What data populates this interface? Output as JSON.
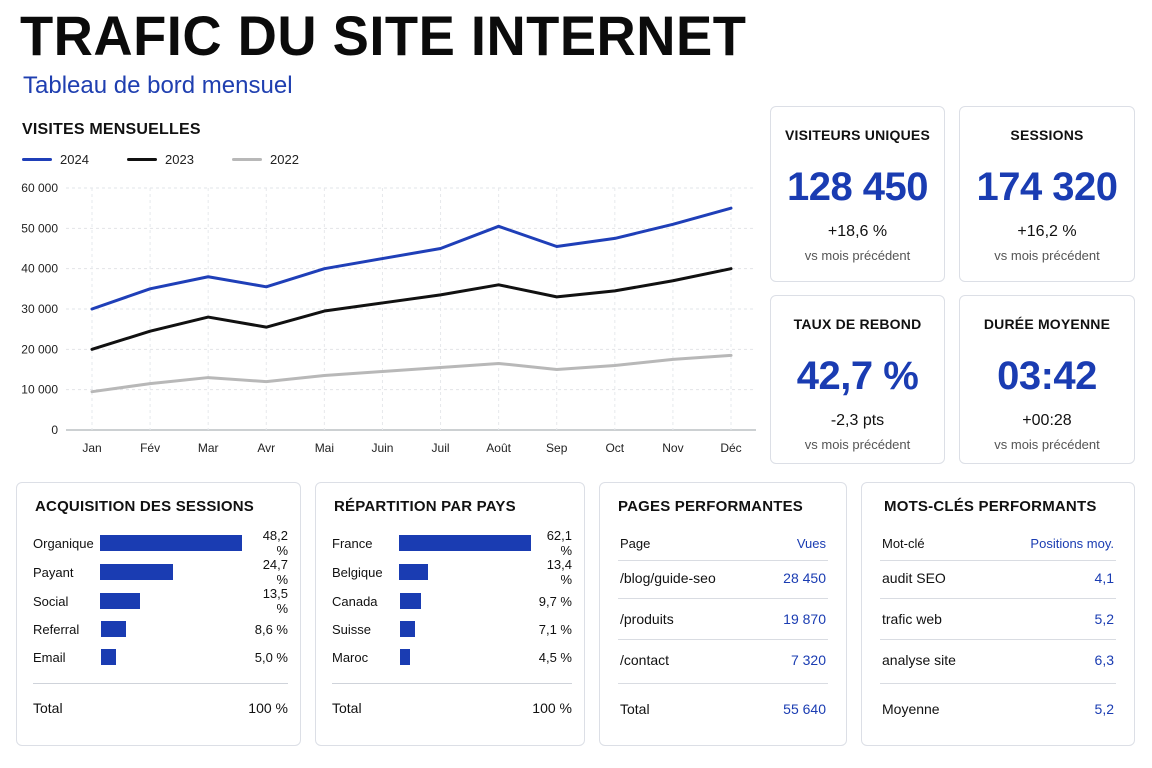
{
  "header": {
    "title": "TRAFIC DU SITE INTERNET",
    "subtitle": "Tableau de bord mensuel"
  },
  "colors": {
    "accent": "#1a3cb2",
    "series_2024": "#1f3fb8",
    "series_2023": "#111111",
    "series_2022": "#b8b8b8"
  },
  "chart_data": {
    "type": "line",
    "title": "VISITES MENSUELLES",
    "categories": [
      "Jan",
      "Fév",
      "Mar",
      "Avr",
      "Mai",
      "Juin",
      "Juil",
      "Août",
      "Sep",
      "Oct",
      "Nov",
      "Déc"
    ],
    "series": [
      {
        "name": "2024",
        "values": [
          30000,
          35000,
          38000,
          35500,
          40000,
          42500,
          45000,
          50500,
          45500,
          47500,
          51000,
          55000
        ]
      },
      {
        "name": "2023",
        "values": [
          20000,
          24500,
          28000,
          25500,
          29500,
          31500,
          33500,
          36000,
          33000,
          34500,
          37000,
          40000
        ]
      },
      {
        "name": "2022",
        "values": [
          9500,
          11500,
          13000,
          12000,
          13500,
          14500,
          15500,
          16500,
          15000,
          16000,
          17500,
          18500
        ]
      }
    ],
    "yticks": [
      "60 000",
      "50 000",
      "40 000",
      "30 000",
      "20 000",
      "10 000",
      "0"
    ],
    "ylim": [
      0,
      60000
    ],
    "grid": true,
    "legend_position": "top-left"
  },
  "kpis": [
    {
      "label": "VISITEURS UNIQUES",
      "value": "128 450",
      "delta": "+18,6 %",
      "note": "vs mois précédent"
    },
    {
      "label": "SESSIONS",
      "value": "174 320",
      "delta": "+16,2 %",
      "note": "vs mois précédent"
    },
    {
      "label": "TAUX DE REBOND",
      "value": "42,7 %",
      "delta": "-2,3 pts",
      "note": "vs mois précédent"
    },
    {
      "label": "DURÉE MOYENNE",
      "value": "03:42",
      "delta": "+00:28",
      "note": "vs mois précédent"
    }
  ],
  "acquisition": {
    "title": "ACQUISITION DES SESSIONS",
    "rows": [
      {
        "label": "Organique",
        "pct": "48,2 %",
        "value": 48.2
      },
      {
        "label": "Payant",
        "pct": "24,7 %",
        "value": 24.7
      },
      {
        "label": "Social",
        "pct": "13,5 %",
        "value": 13.5
      },
      {
        "label": "Referral",
        "pct": "8,6 %",
        "value": 8.6
      },
      {
        "label": "Email",
        "pct": "5,0 %",
        "value": 5.0
      }
    ],
    "total_label": "Total",
    "total_value": "100 %"
  },
  "countries": {
    "title": "RÉPARTITION PAR PAYS",
    "rows": [
      {
        "label": "France",
        "pct": "62,1 %",
        "value": 62.1
      },
      {
        "label": "Belgique",
        "pct": "13,4 %",
        "value": 13.4
      },
      {
        "label": "Canada",
        "pct": "9,7 %",
        "value": 9.7
      },
      {
        "label": "Suisse",
        "pct": "7,1 %",
        "value": 7.1
      },
      {
        "label": "Maroc",
        "pct": "4,5 %",
        "value": 4.5
      }
    ],
    "total_label": "Total",
    "total_value": "100 %"
  },
  "pages": {
    "title": "PAGES PERFORMANTES",
    "col1": "Page",
    "col2": "Vues",
    "rows": [
      {
        "label": "/blog/guide-seo",
        "value": "28 450"
      },
      {
        "label": "/produits",
        "value": "19 870"
      },
      {
        "label": "/contact",
        "value": "7 320"
      }
    ],
    "total_label": "Total",
    "total_value": "55 640"
  },
  "keywords": {
    "title": "MOTS-CLÉS PERFORMANTS",
    "col1": "Mot-clé",
    "col2": "Positions moy.",
    "rows": [
      {
        "label": "audit SEO",
        "value": "4,1"
      },
      {
        "label": "trafic web",
        "value": "5,2"
      },
      {
        "label": "analyse site",
        "value": "6,3"
      }
    ],
    "total_label": "Moyenne",
    "total_value": "5,2"
  }
}
